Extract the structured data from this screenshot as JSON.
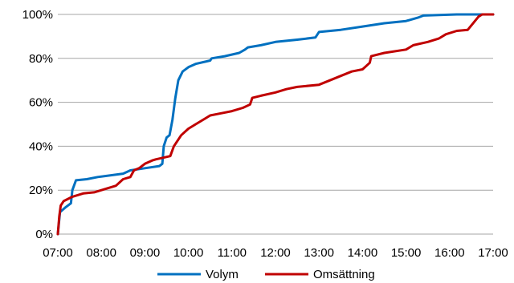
{
  "chart_data": {
    "type": "line",
    "title": "",
    "xlabel": "",
    "ylabel": "",
    "x_ticks": [
      "07:00",
      "08:00",
      "09:00",
      "10:00",
      "11:00",
      "12:00",
      "13:00",
      "14:00",
      "15:00",
      "16:00",
      "17:00"
    ],
    "y_ticks": [
      "0%",
      "20%",
      "40%",
      "60%",
      "80%",
      "100%"
    ],
    "xlim": [
      "07:00",
      "17:00"
    ],
    "ylim": [
      0,
      100
    ],
    "y_unit": "%",
    "grid": "horizontal",
    "legend_position": "bottom",
    "series": [
      {
        "name": "Volym",
        "color": "#0070c0",
        "points": [
          [
            "07:00",
            0
          ],
          [
            "07:03",
            10
          ],
          [
            "07:10",
            12
          ],
          [
            "07:18",
            14
          ],
          [
            "07:20",
            20
          ],
          [
            "07:25",
            24.5
          ],
          [
            "07:40",
            25
          ],
          [
            "07:55",
            26
          ],
          [
            "08:30",
            27.5
          ],
          [
            "08:40",
            29
          ],
          [
            "09:00",
            30
          ],
          [
            "09:20",
            31
          ],
          [
            "09:24",
            32
          ],
          [
            "09:26",
            40
          ],
          [
            "09:30",
            44
          ],
          [
            "09:34",
            45
          ],
          [
            "09:38",
            52
          ],
          [
            "09:42",
            62
          ],
          [
            "09:46",
            70
          ],
          [
            "09:52",
            74
          ],
          [
            "10:00",
            76
          ],
          [
            "10:10",
            77.5
          ],
          [
            "10:30",
            79
          ],
          [
            "10:32",
            80
          ],
          [
            "10:50",
            81
          ],
          [
            "11:10",
            82.5
          ],
          [
            "11:18",
            84
          ],
          [
            "11:22",
            85
          ],
          [
            "11:40",
            86
          ],
          [
            "12:00",
            87.5
          ],
          [
            "12:30",
            88.5
          ],
          [
            "12:55",
            89.5
          ],
          [
            "13:00",
            92
          ],
          [
            "13:30",
            93
          ],
          [
            "14:00",
            94.5
          ],
          [
            "14:30",
            96
          ],
          [
            "15:00",
            97
          ],
          [
            "15:16",
            98.5
          ],
          [
            "15:24",
            99.5
          ],
          [
            "16:10",
            100
          ],
          [
            "17:00",
            100
          ]
        ]
      },
      {
        "name": "Omsättning",
        "color": "#c00000",
        "points": [
          [
            "07:00",
            0
          ],
          [
            "07:02",
            8
          ],
          [
            "07:04",
            13
          ],
          [
            "07:08",
            15
          ],
          [
            "07:20",
            17
          ],
          [
            "07:35",
            18.5
          ],
          [
            "07:50",
            19
          ],
          [
            "08:00",
            20
          ],
          [
            "08:20",
            22
          ],
          [
            "08:30",
            25
          ],
          [
            "08:40",
            26
          ],
          [
            "08:45",
            29
          ],
          [
            "08:52",
            30
          ],
          [
            "09:00",
            32
          ],
          [
            "09:10",
            33.5
          ],
          [
            "09:15",
            34
          ],
          [
            "09:35",
            35.5
          ],
          [
            "09:40",
            40
          ],
          [
            "09:50",
            45
          ],
          [
            "10:00",
            48
          ],
          [
            "10:10",
            50
          ],
          [
            "10:20",
            52
          ],
          [
            "10:30",
            54
          ],
          [
            "10:45",
            55
          ],
          [
            "11:00",
            56
          ],
          [
            "11:15",
            57.5
          ],
          [
            "11:25",
            59
          ],
          [
            "11:28",
            62
          ],
          [
            "11:40",
            63
          ],
          [
            "12:00",
            64.5
          ],
          [
            "12:15",
            66
          ],
          [
            "12:30",
            67
          ],
          [
            "13:00",
            68
          ],
          [
            "13:15",
            70
          ],
          [
            "13:30",
            72
          ],
          [
            "13:45",
            74
          ],
          [
            "14:00",
            75
          ],
          [
            "14:10",
            78
          ],
          [
            "14:12",
            81
          ],
          [
            "14:30",
            82.5
          ],
          [
            "15:00",
            84
          ],
          [
            "15:10",
            86
          ],
          [
            "15:30",
            87.5
          ],
          [
            "15:45",
            89
          ],
          [
            "15:55",
            91
          ],
          [
            "16:10",
            92.5
          ],
          [
            "16:25",
            93
          ],
          [
            "16:30",
            95
          ],
          [
            "16:35",
            97
          ],
          [
            "16:40",
            99
          ],
          [
            "16:45",
            100
          ],
          [
            "17:00",
            100
          ]
        ]
      }
    ]
  }
}
